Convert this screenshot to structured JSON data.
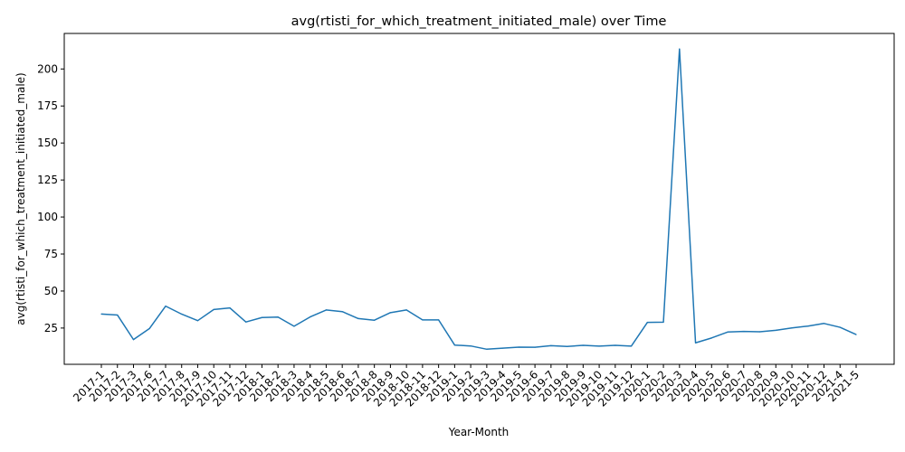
{
  "chart_data": {
    "type": "line",
    "title": "avg(rtisti_for_which_treatment_initiated_male) over Time",
    "xlabel": "Year-Month",
    "ylabel": "avg(rtisti_for_which_treatment_initiated_male)",
    "categories": [
      "2017-1",
      "2017-2",
      "2017-3",
      "2017-6",
      "2017-7",
      "2017-8",
      "2017-9",
      "2017-10",
      "2017-11",
      "2017-12",
      "2018-1",
      "2018-2",
      "2018-3",
      "2018-4",
      "2018-5",
      "2018-6",
      "2018-7",
      "2018-8",
      "2018-9",
      "2018-10",
      "2018-11",
      "2018-12",
      "2019-1",
      "2019-2",
      "2019-3",
      "2019-4",
      "2019-5",
      "2019-6",
      "2019-7",
      "2019-8",
      "2019-9",
      "2019-10",
      "2019-11",
      "2019-12",
      "2020-1",
      "2020-2",
      "2020-3",
      "2020-4",
      "2020-5",
      "2020-6",
      "2020-7",
      "2020-8",
      "2020-9",
      "2020-10",
      "2020-11",
      "2020-12",
      "2021-4",
      "2021-5"
    ],
    "series": [
      {
        "values": [
          34.5,
          33.8,
          17.2,
          24.7,
          39.8,
          34.4,
          30.0,
          37.5,
          38.6,
          29.1,
          32.1,
          32.4,
          26.2,
          32.5,
          37.2,
          36.1,
          31.4,
          30.3,
          35.4,
          37.2,
          30.5,
          30.5,
          13.5,
          12.9,
          10.7,
          11.4,
          12.1,
          12.0,
          13.1,
          12.6,
          13.3,
          12.8,
          13.3,
          12.8,
          28.8,
          29.0,
          213.5,
          15.0,
          18.3,
          22.3,
          22.7,
          22.5,
          23.5,
          25.1,
          26.3,
          28.1,
          25.5,
          20.6
        ],
        "color": "#1f77b4"
      }
    ],
    "yticks": [
      25,
      50,
      75,
      100,
      125,
      150,
      175,
      200
    ],
    "ylim": [
      0.5,
      224
    ],
    "grid": false,
    "legend": "none"
  }
}
